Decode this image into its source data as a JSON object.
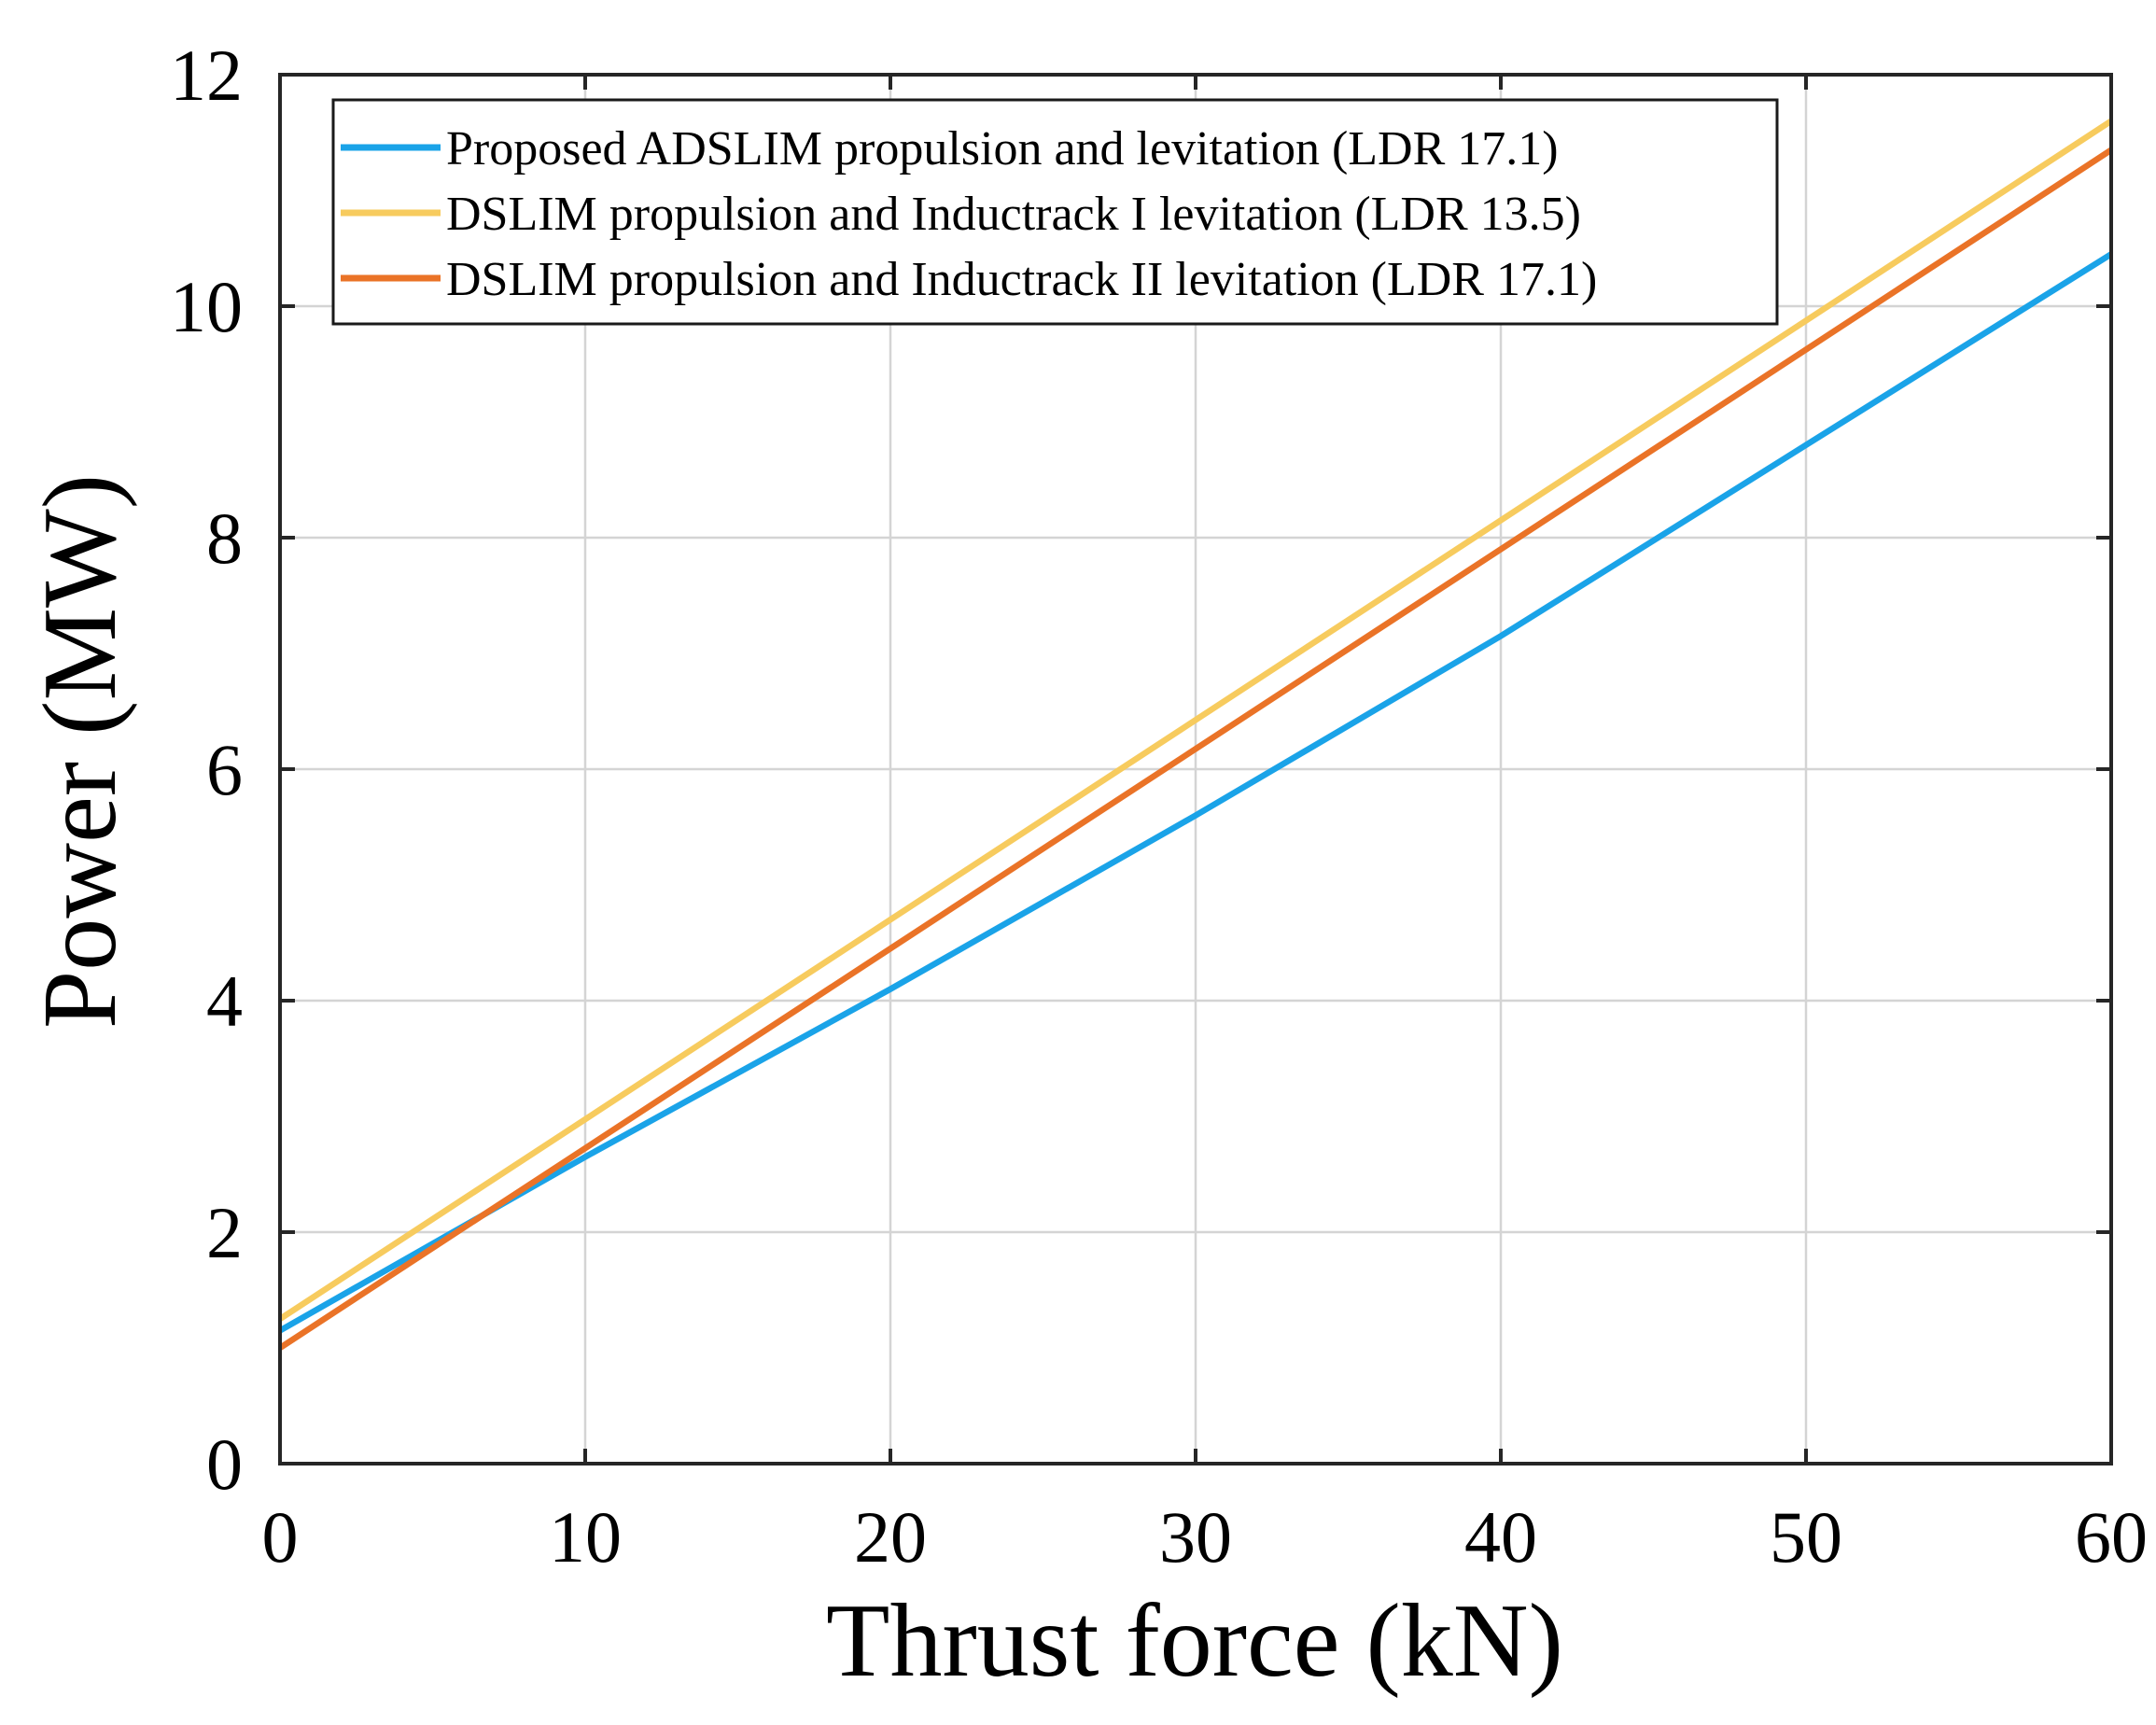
{
  "chart_data": {
    "type": "line",
    "title": "",
    "xlabel": "Thrust force (kN)",
    "ylabel": "Power (MW)",
    "xlim": [
      0,
      60
    ],
    "ylim": [
      0,
      12
    ],
    "xticks": [
      0,
      10,
      20,
      30,
      40,
      50,
      60
    ],
    "yticks": [
      0,
      2,
      4,
      6,
      8,
      10,
      12
    ],
    "grid": true,
    "legend_position": "top-left",
    "series": [
      {
        "name": "Proposed ADSLIM propulsion and levitation (LDR 17.1)",
        "color": "#1aa3e8",
        "x": [
          0,
          10,
          20,
          30,
          40,
          50,
          60
        ],
        "values": [
          1.15,
          2.65,
          4.1,
          5.6,
          7.15,
          8.8,
          10.45
        ]
      },
      {
        "name": "DSLIM propulsion and Inductrack I levitation (LDR 13.5)",
        "color": "#f7cb5e",
        "x": [
          0,
          60
        ],
        "values": [
          1.25,
          11.6
        ]
      },
      {
        "name": "DSLIM propulsion and Inductrack II levitation (LDR 17.1)",
        "color": "#ea7327",
        "x": [
          0,
          60
        ],
        "values": [
          1.0,
          11.35
        ]
      }
    ]
  }
}
